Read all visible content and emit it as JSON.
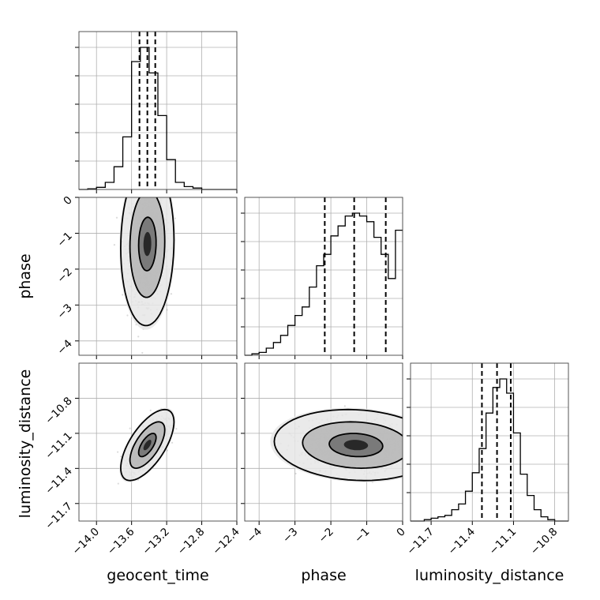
{
  "chart_data": {
    "type": "corner",
    "parameters": [
      "geocent_time",
      "phase",
      "luminosity_distance"
    ],
    "grid": true,
    "quantiles": [
      0.16,
      0.5,
      0.84
    ],
    "contour_levels": [
      0.39,
      0.86,
      0.99
    ],
    "panels": [
      {
        "id": "geocent_time-hist",
        "type": "histogram",
        "parameter": "geocent_time",
        "xlim": [
          -14.2,
          -12.4
        ],
        "xticks": [
          -14.0,
          -13.6,
          -13.2,
          -12.8,
          -12.4
        ],
        "xticklabels": [
          "−14.0",
          "−13.6",
          "−13.2",
          "−12.8",
          "−12.4"
        ],
        "xlabel": "geocent_time",
        "bins": [
          -14.2,
          -14.1,
          -14.0,
          -13.9,
          -13.8,
          -13.7,
          -13.6,
          -13.5,
          -13.4,
          -13.3,
          -13.2,
          -13.1,
          -13.0,
          -12.9,
          -12.8,
          -12.7,
          -12.6,
          -12.5,
          -12.4
        ],
        "counts": [
          0,
          0.5,
          1.5,
          5,
          16,
          37,
          90,
          100,
          82,
          52,
          21,
          5,
          2,
          1,
          0,
          0,
          0,
          0
        ],
        "quantile_values": [
          -13.51,
          -13.42,
          -13.33
        ]
      },
      {
        "id": "phase-hist",
        "type": "histogram",
        "parameter": "phase",
        "xlim": [
          -4.4,
          0.0
        ],
        "xticks": [
          -4,
          -3,
          -2,
          -1,
          0
        ],
        "xticklabels": [
          "−4",
          "−3",
          "−2",
          "−1",
          "0"
        ],
        "xlabel": "phase",
        "bins": [
          -4.4,
          -4.2,
          -4.0,
          -3.8,
          -3.6,
          -3.4,
          -3.2,
          -3.0,
          -2.8,
          -2.6,
          -2.4,
          -2.2,
          -2.0,
          -1.8,
          -1.6,
          -1.4,
          -1.2,
          -1.0,
          -0.8,
          -0.6,
          -0.4,
          -0.2,
          0.0
        ],
        "counts": [
          0,
          1,
          2,
          5,
          9,
          14,
          21,
          28,
          34,
          48,
          63,
          71,
          84,
          91,
          98,
          100,
          98,
          94,
          83,
          71,
          54,
          88
        ],
        "quantile_values": [
          -2.17,
          -1.35,
          -0.47
        ]
      },
      {
        "id": "luminosity_distance-hist",
        "type": "histogram",
        "parameter": "luminosity_distance",
        "xlim": [
          -11.85,
          -10.7
        ],
        "xticks": [
          -11.7,
          -11.4,
          -11.1,
          -10.8
        ],
        "xticklabels": [
          "−11.7",
          "−11.4",
          "−11.1",
          "−10.8"
        ],
        "xlabel": "luminosity_distance",
        "bins": [
          -11.85,
          -11.8,
          -11.75,
          -11.7,
          -11.65,
          -11.6,
          -11.55,
          -11.5,
          -11.45,
          -11.4,
          -11.35,
          -11.3,
          -11.25,
          -11.2,
          -11.15,
          -11.1,
          -11.05,
          -11.0,
          -10.95,
          -10.9,
          -10.85,
          -10.8,
          -10.75,
          -10.7
        ],
        "counts": [
          0,
          0,
          1,
          2,
          3,
          4,
          8,
          12,
          21,
          34,
          51,
          76,
          94,
          100,
          90,
          62,
          33,
          18,
          8,
          3,
          1,
          0,
          0
        ],
        "quantile_values": [
          -11.33,
          -11.22,
          -11.12
        ]
      },
      {
        "id": "phase-vs-geocent_time",
        "type": "density2d",
        "x": "geocent_time",
        "y": "phase",
        "xlim": [
          -14.2,
          -12.4
        ],
        "ylim": [
          -4.4,
          0.0
        ],
        "yticks": [
          0,
          -1,
          -2,
          -3,
          -4
        ],
        "yticklabels": [
          "0",
          "−1",
          "−2",
          "−3",
          "−4"
        ],
        "ylabel": "phase",
        "mean": [
          -13.42,
          -1.3
        ],
        "sigma": [
          0.1,
          0.75
        ],
        "correlation": 0.05
      },
      {
        "id": "luminosity_distance-vs-geocent_time",
        "type": "density2d",
        "x": "geocent_time",
        "y": "luminosity_distance",
        "xlim": [
          -14.2,
          -12.4
        ],
        "ylim": [
          -11.85,
          -10.5
        ],
        "yticks": [
          -10.8,
          -11.1,
          -11.4,
          -11.7
        ],
        "yticklabels": [
          "−10.8",
          "−11.1",
          "−11.4",
          "−11.7"
        ],
        "ylabel": "luminosity_distance",
        "mean": [
          -13.42,
          -11.2
        ],
        "sigma": [
          0.1,
          0.1
        ],
        "correlation": 0.65
      },
      {
        "id": "luminosity_distance-vs-phase",
        "type": "density2d",
        "x": "phase",
        "y": "luminosity_distance",
        "xlim": [
          -4.4,
          0.0
        ],
        "ylim": [
          -11.85,
          -10.5
        ],
        "mean": [
          -1.3,
          -11.2
        ],
        "sigma": [
          0.75,
          0.1
        ],
        "correlation": -0.1
      }
    ]
  }
}
